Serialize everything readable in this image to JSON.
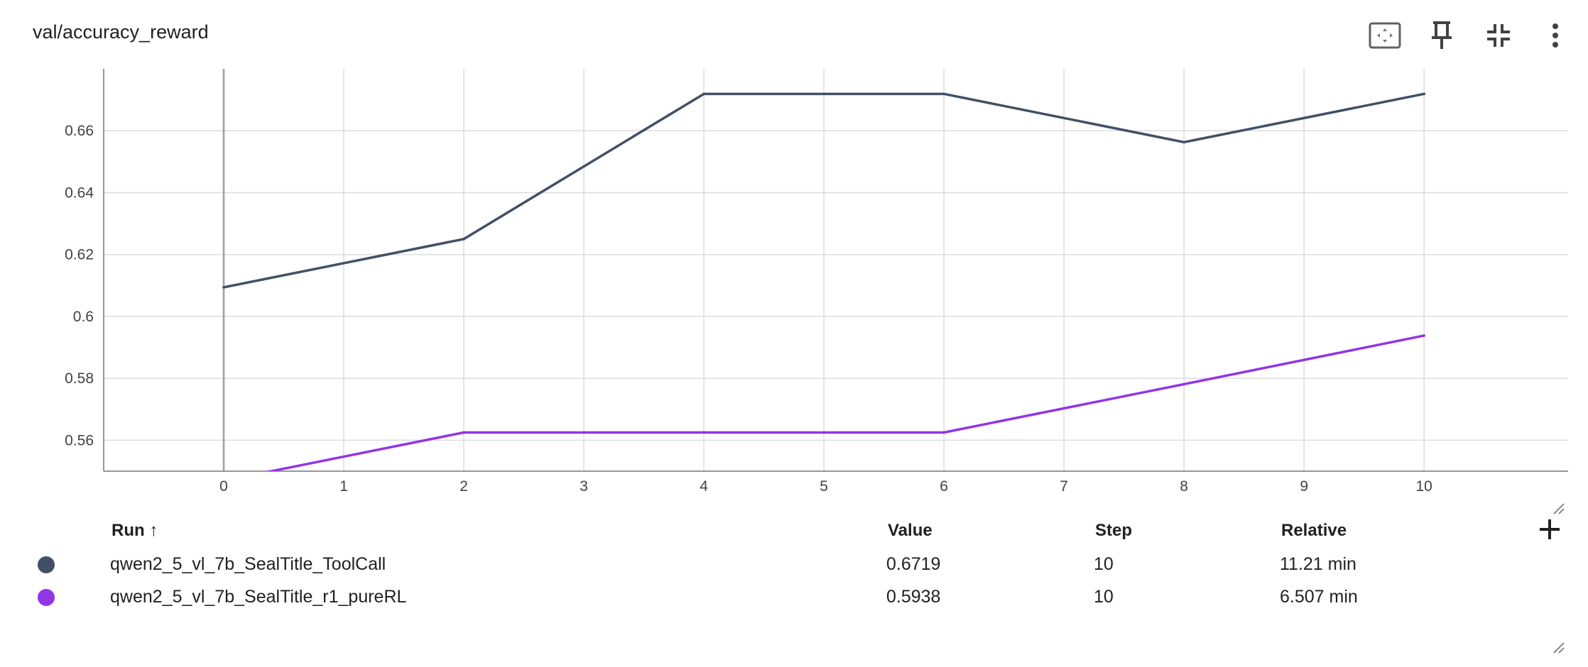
{
  "card": {
    "title": "val/accuracy_reward"
  },
  "toolbar": {
    "fit_icon": "fit-domain-icon",
    "pin_icon": "pin-icon",
    "collapse_icon": "collapse-icon",
    "more_icon": "more-vert-icon"
  },
  "chart_data": {
    "type": "line",
    "title": "val/accuracy_reward",
    "xlabel": "",
    "ylabel": "",
    "xlim": [
      -1,
      11.2
    ],
    "ylim": [
      0.55,
      0.68
    ],
    "x_ticks": [
      0,
      1,
      2,
      3,
      4,
      5,
      6,
      7,
      8,
      9,
      10
    ],
    "y_ticks": [
      0.56,
      0.58,
      0.6,
      0.62,
      0.64,
      0.66
    ],
    "y_tick_labels": [
      "0.56",
      "0.58",
      "0.6",
      "0.62",
      "0.64",
      "0.66"
    ],
    "grid": true,
    "series": [
      {
        "name": "qwen2_5_vl_7b_SealTitle_ToolCall",
        "color": "#425066",
        "x": [
          0,
          2,
          4,
          6,
          8,
          10
        ],
        "values": [
          0.6094,
          0.625,
          0.6719,
          0.6719,
          0.6563,
          0.6719
        ]
      },
      {
        "name": "qwen2_5_vl_7b_SealTitle_r1_pureRL",
        "color": "#9334e6",
        "x": [
          0,
          2,
          4,
          6,
          8,
          10
        ],
        "values": [
          0.5469,
          0.5625,
          0.5625,
          0.5625,
          0.5781,
          0.5938
        ]
      }
    ]
  },
  "table": {
    "headers": {
      "run": "Run ↑",
      "value": "Value",
      "step": "Step",
      "relative": "Relative"
    },
    "rows": [
      {
        "color": "#425066",
        "run": "qwen2_5_vl_7b_SealTitle_ToolCall",
        "value": "0.6719",
        "step": "10",
        "relative": "11.21 min"
      },
      {
        "color": "#9334e6",
        "run": "qwen2_5_vl_7b_SealTitle_r1_pureRL",
        "value": "0.5938",
        "step": "10",
        "relative": "6.507 min"
      }
    ]
  }
}
